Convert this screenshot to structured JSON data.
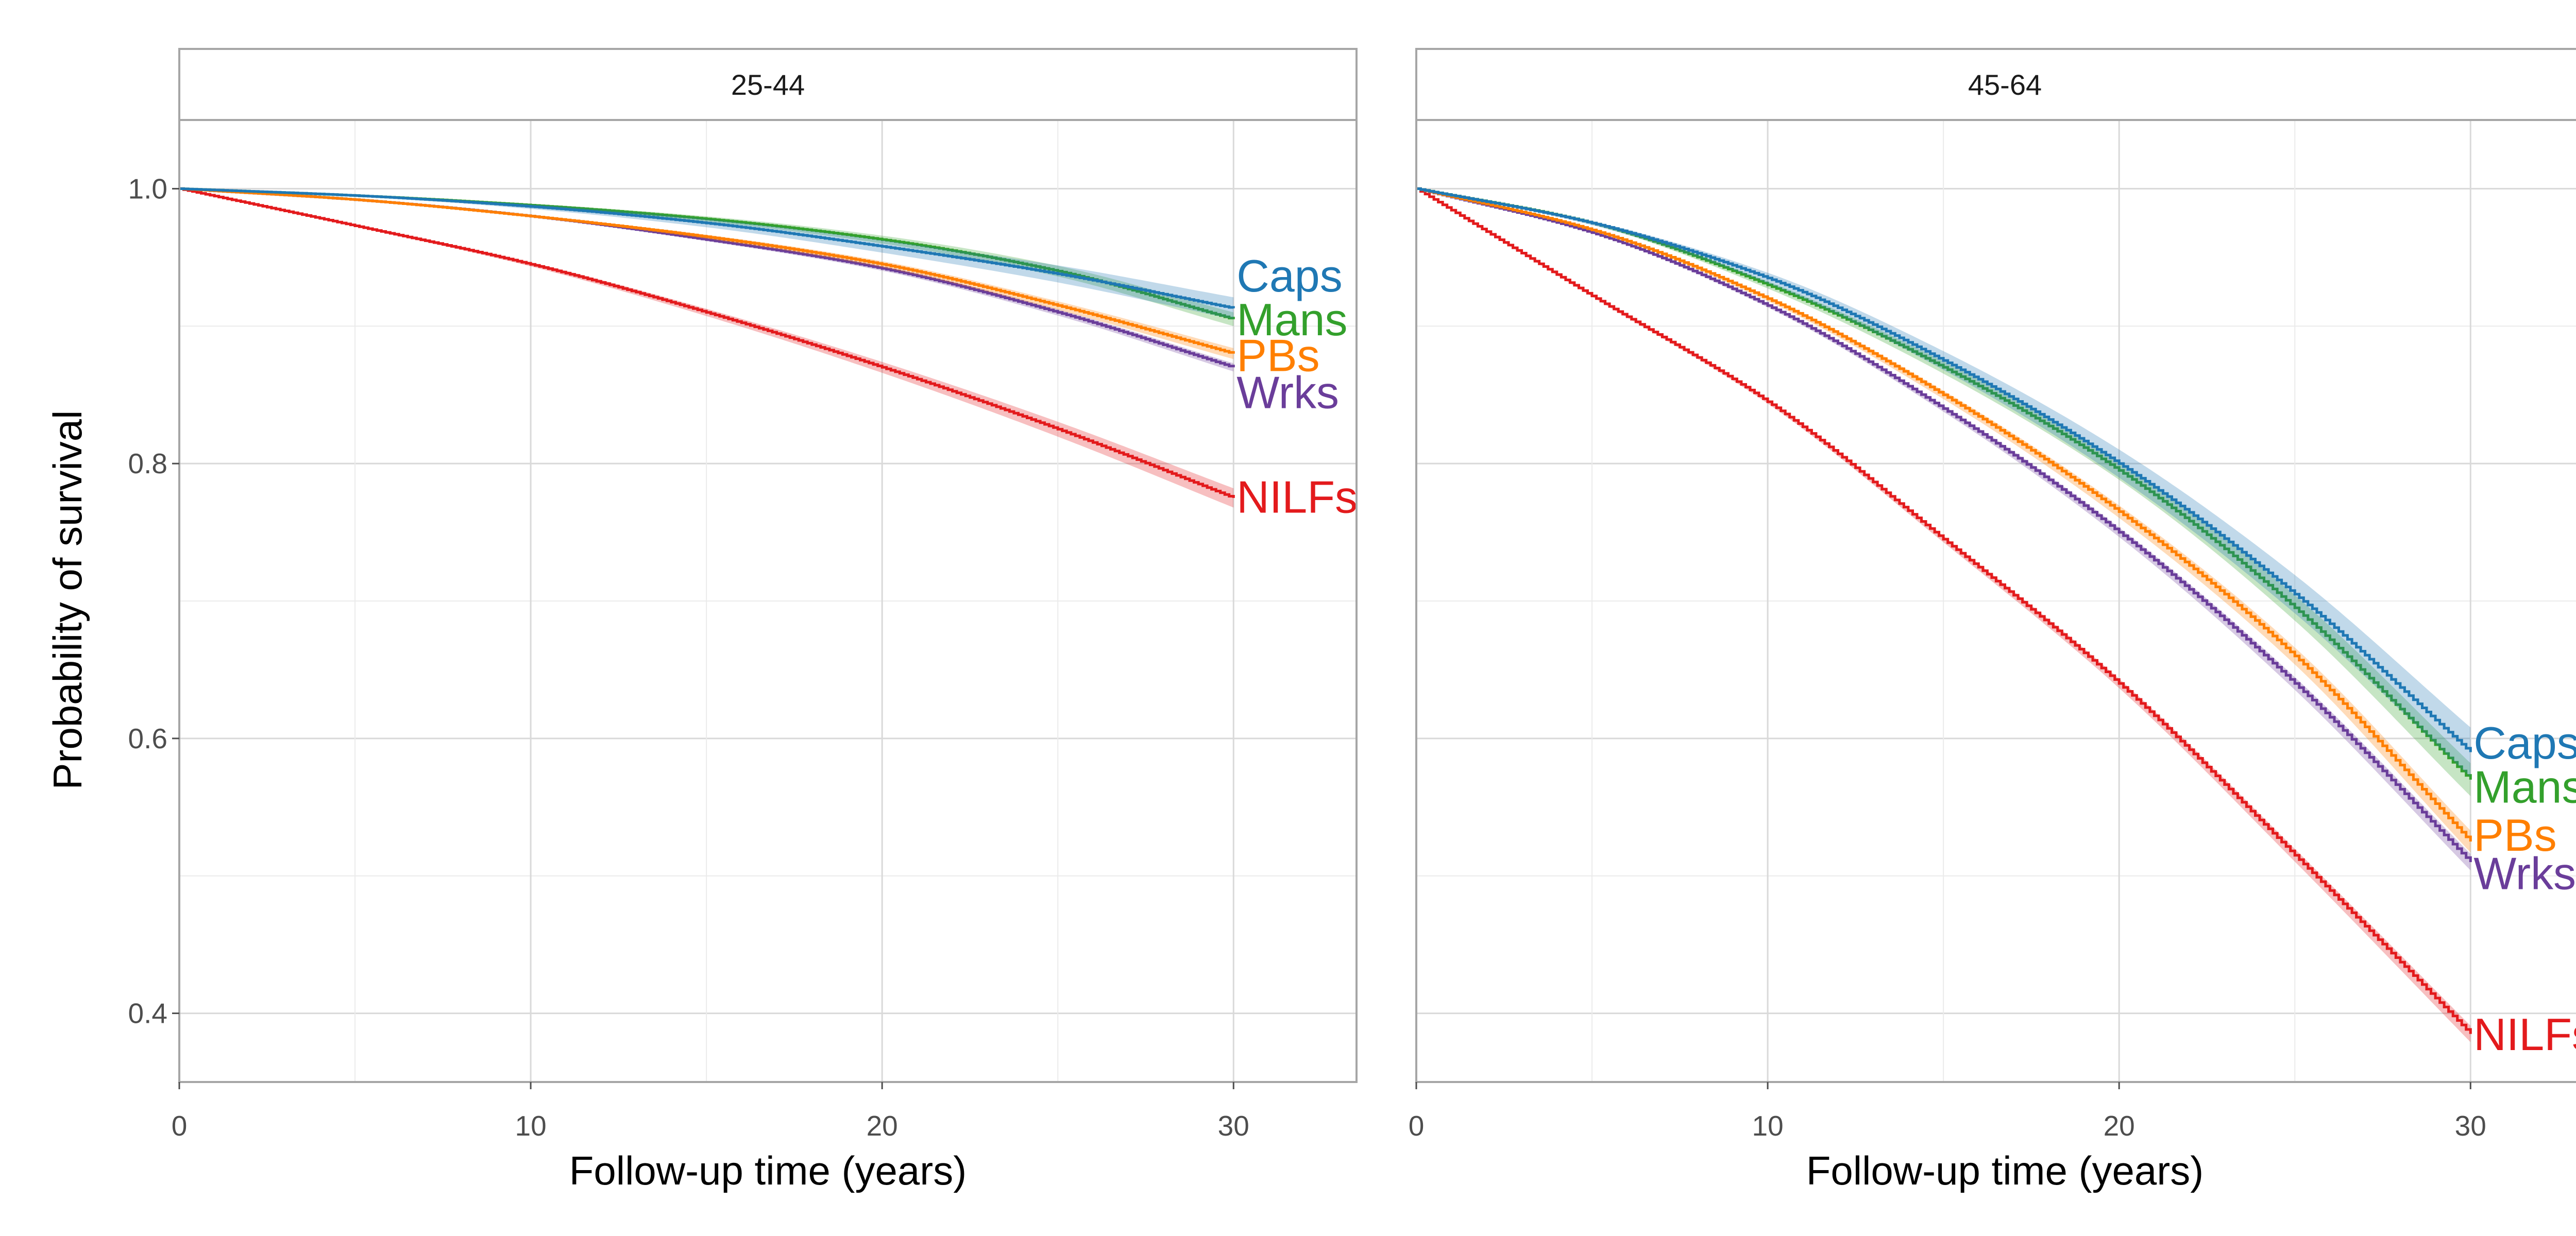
{
  "chart_data": {
    "type": "line",
    "ylabel": "Probability of survival",
    "xlabel": "Follow-up time (years)",
    "xlim": [
      0,
      33.5
    ],
    "ylim": [
      0.35,
      1.05
    ],
    "x_ticks": [
      "0",
      "10",
      "20",
      "30"
    ],
    "y_ticks": [
      "0.4",
      "0.6",
      "0.8",
      "1.0"
    ],
    "grid": true,
    "step": true,
    "confidence_bands": true,
    "colors": {
      "Caps": "#1f78b4",
      "Mans": "#33a02c",
      "PBs": "#ff7f00",
      "Wrks": "#6a3d9a",
      "NILFs": "#e31a1c"
    },
    "panels": [
      {
        "title": "25-44",
        "x": [
          0,
          5,
          10,
          15,
          20,
          25,
          30
        ],
        "series": [
          {
            "name": "Caps",
            "values": [
              1.0,
              0.995,
              0.987,
              0.975,
              0.958,
              0.938,
              0.913
            ],
            "ci": 0.008
          },
          {
            "name": "Mans",
            "values": [
              1.0,
              0.995,
              0.988,
              0.978,
              0.963,
              0.94,
              0.905
            ],
            "ci": 0.005
          },
          {
            "name": "PBs",
            "values": [
              1.0,
              0.992,
              0.98,
              0.965,
              0.945,
              0.915,
              0.88
            ],
            "ci": 0.004
          },
          {
            "name": "Wrks",
            "values": [
              1.0,
              0.992,
              0.98,
              0.963,
              0.942,
              0.91,
              0.87
            ],
            "ci": 0.003
          },
          {
            "name": "NILFs",
            "values": [
              1.0,
              0.973,
              0.945,
              0.91,
              0.87,
              0.825,
              0.775
            ],
            "ci": 0.007
          }
        ],
        "labels": [
          {
            "name": "Caps",
            "text": "Caps",
            "y": 0.934
          },
          {
            "name": "Mans",
            "text": "Mans",
            "y": 0.902
          },
          {
            "name": "PBs",
            "text": "PBs",
            "y": 0.876
          },
          {
            "name": "Wrks",
            "text": "Wrks",
            "y": 0.849
          },
          {
            "name": "NILFs",
            "text": "NILFs",
            "y": 0.773
          }
        ]
      },
      {
        "title": "45-64",
        "x": [
          0,
          5,
          10,
          15,
          20,
          25,
          30
        ],
        "series": [
          {
            "name": "Caps",
            "values": [
              1.0,
              0.975,
              0.935,
              0.875,
              0.8,
              0.705,
              0.59
            ],
            "ci": 0.018
          },
          {
            "name": "Mans",
            "values": [
              1.0,
              0.975,
              0.93,
              0.87,
              0.795,
              0.695,
              0.57
            ],
            "ci": 0.012
          },
          {
            "name": "PBs",
            "values": [
              1.0,
              0.97,
              0.92,
              0.85,
              0.765,
              0.66,
              0.525
            ],
            "ci": 0.008
          },
          {
            "name": "Wrks",
            "values": [
              1.0,
              0.968,
              0.915,
              0.84,
              0.75,
              0.64,
              0.51
            ],
            "ci": 0.006
          },
          {
            "name": "NILFs",
            "values": [
              1.0,
              0.922,
              0.845,
              0.745,
              0.64,
              0.515,
              0.385
            ],
            "ci": 0.006
          }
        ],
        "labels": [
          {
            "name": "Caps",
            "text": "Caps",
            "y": 0.594
          },
          {
            "name": "Mans",
            "text": "Mans",
            "y": 0.562
          },
          {
            "name": "PBs",
            "text": "PBs",
            "y": 0.527
          },
          {
            "name": "Wrks",
            "text": "Wrks",
            "y": 0.499
          },
          {
            "name": "NILFs",
            "text": "NILFs",
            "y": 0.382
          }
        ]
      }
    ]
  }
}
